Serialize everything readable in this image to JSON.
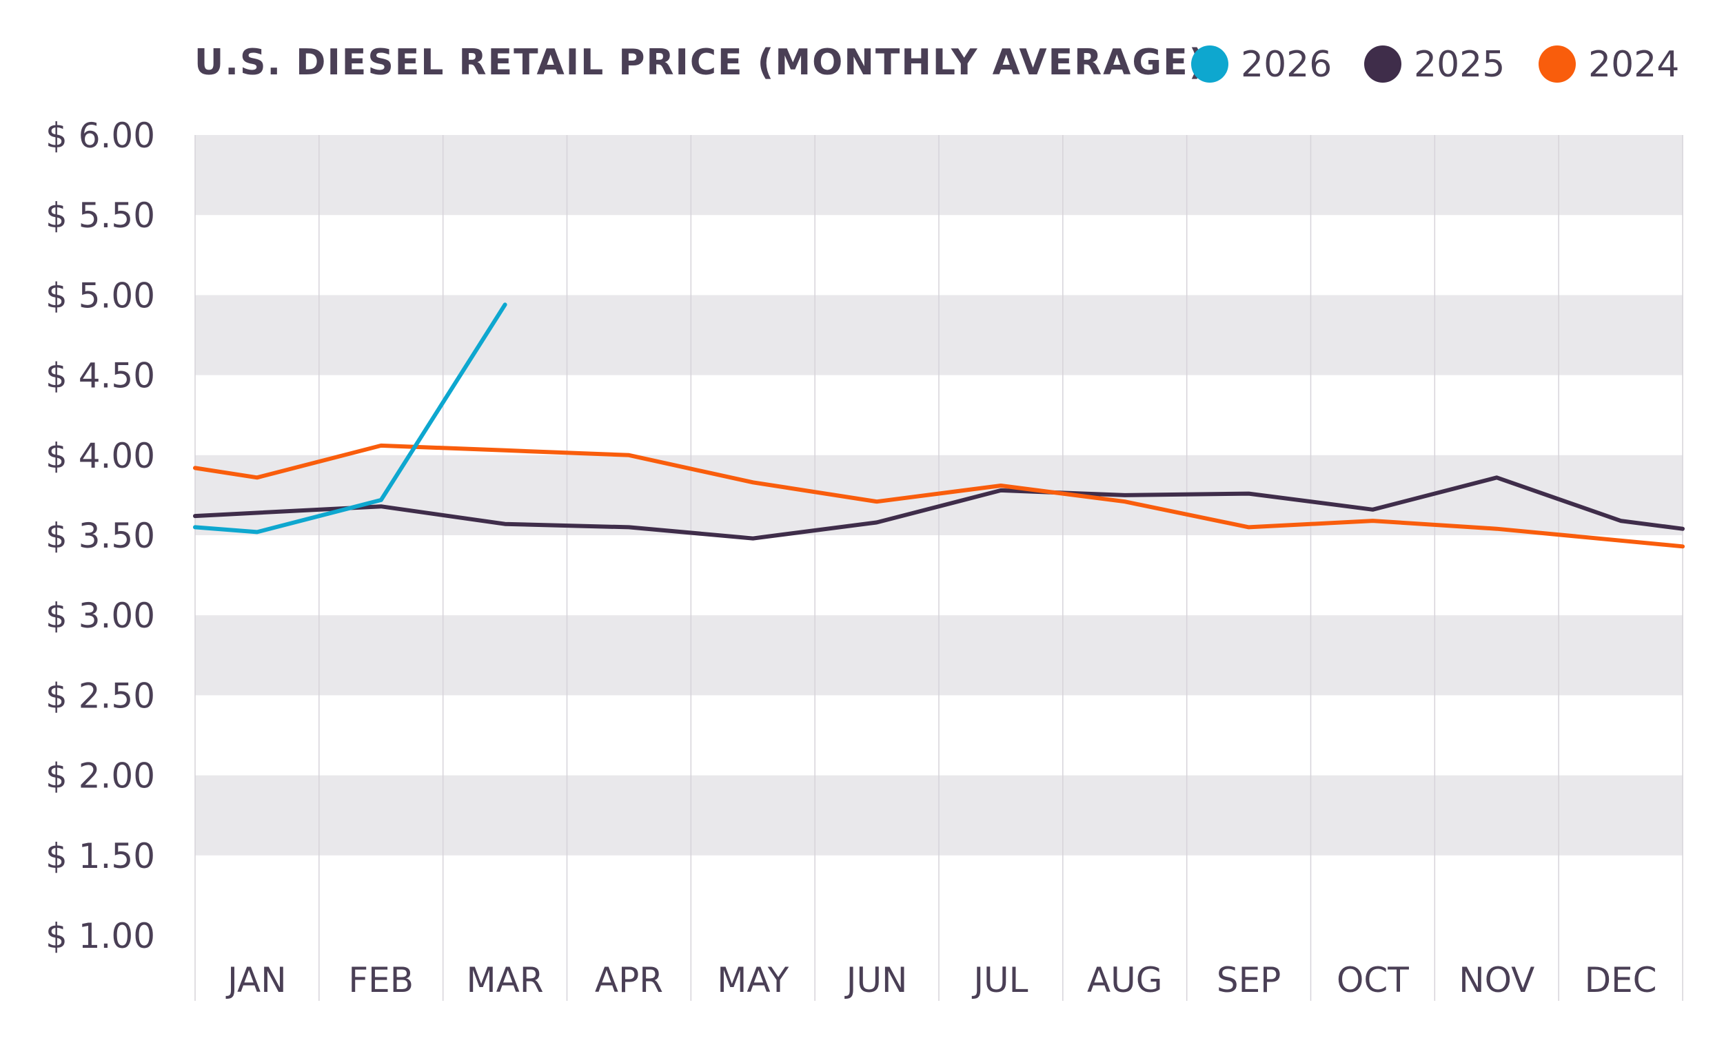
{
  "chart_data": {
    "type": "line",
    "title": "U.S. DIESEL RETAIL PRICE (MONTHLY AVERAGE)",
    "categories": [
      "JAN",
      "FEB",
      "MAR",
      "APR",
      "MAY",
      "JUN",
      "JUL",
      "AUG",
      "SEP",
      "OCT",
      "NOV",
      "DEC"
    ],
    "ylim": [
      1.0,
      6.0
    ],
    "yticks": [
      6.0,
      5.5,
      5.0,
      4.5,
      4.0,
      3.5,
      3.0,
      2.5,
      2.0,
      1.5,
      1.0
    ],
    "ytick_labels": [
      "$ 6.00",
      "$ 5.50",
      "$ 5.00",
      "$ 4.50",
      "$ 4.00",
      "$ 3.50",
      "$ 3.00",
      "$ 2.50",
      "$ 2.00",
      "$ 1.50",
      "$ 1.00"
    ],
    "grid": "alternating horizontal bands",
    "legend_position": "top-right",
    "series": [
      {
        "name": "2026",
        "color": "#0ea7cf",
        "points": [
          {
            "x": 0.0,
            "y": 3.55
          },
          {
            "x": 0.5,
            "y": 3.52
          },
          {
            "x": 1.5,
            "y": 3.72
          },
          {
            "x": 2.5,
            "y": 4.94
          }
        ]
      },
      {
        "name": "2025",
        "color": "#3f2d4a",
        "points": [
          {
            "x": 0.0,
            "y": 3.62
          },
          {
            "x": 1.5,
            "y": 3.68
          },
          {
            "x": 2.5,
            "y": 3.57
          },
          {
            "x": 3.5,
            "y": 3.55
          },
          {
            "x": 4.5,
            "y": 3.48
          },
          {
            "x": 5.5,
            "y": 3.58
          },
          {
            "x": 6.5,
            "y": 3.78
          },
          {
            "x": 7.5,
            "y": 3.75
          },
          {
            "x": 8.5,
            "y": 3.76
          },
          {
            "x": 9.5,
            "y": 3.66
          },
          {
            "x": 10.5,
            "y": 3.86
          },
          {
            "x": 11.5,
            "y": 3.59
          },
          {
            "x": 12.0,
            "y": 3.54
          }
        ]
      },
      {
        "name": "2024",
        "color": "#f95d0c",
        "points": [
          {
            "x": 0.0,
            "y": 3.92
          },
          {
            "x": 0.5,
            "y": 3.86
          },
          {
            "x": 1.5,
            "y": 4.06
          },
          {
            "x": 2.5,
            "y": 4.03
          },
          {
            "x": 3.5,
            "y": 4.0
          },
          {
            "x": 4.5,
            "y": 3.83
          },
          {
            "x": 5.5,
            "y": 3.71
          },
          {
            "x": 6.5,
            "y": 3.81
          },
          {
            "x": 7.5,
            "y": 3.71
          },
          {
            "x": 8.5,
            "y": 3.55
          },
          {
            "x": 9.5,
            "y": 3.59
          },
          {
            "x": 10.5,
            "y": 3.54
          },
          {
            "x": 12.0,
            "y": 3.43
          }
        ]
      }
    ]
  },
  "colors": {
    "band": "#e9e8eb",
    "text": "#4a3f55",
    "gridline": "#d6d3d9"
  }
}
